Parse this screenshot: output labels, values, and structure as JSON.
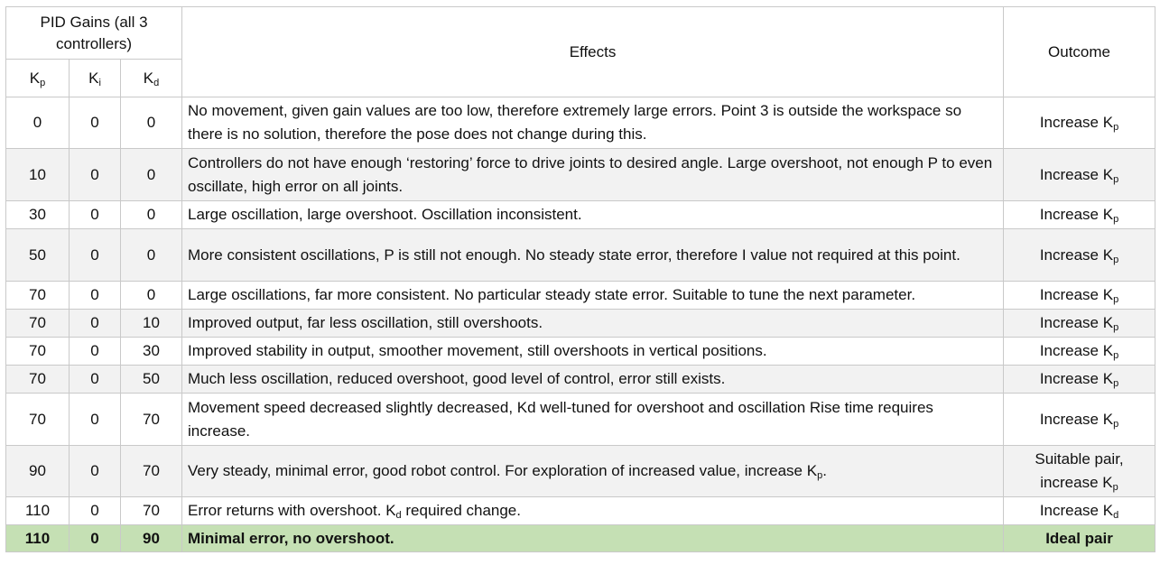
{
  "header": {
    "group_label": "PID Gains (all 3 controllers)",
    "kp": {
      "base": "K",
      "sub": "p"
    },
    "ki": {
      "base": "K",
      "sub": "i"
    },
    "kd": {
      "base": "K",
      "sub": "d"
    },
    "effects": "Effects",
    "outcome": "Outcome"
  },
  "rows": [
    {
      "kp": "0",
      "ki": "0",
      "kd": "0",
      "effects": "No movement, given gain values are too low, therefore extremely large errors. Point 3 is outside the workspace so there is no solution, therefore the pose does not change during this.",
      "outcome_pre": "Increase K",
      "outcome_sub": "p"
    },
    {
      "kp": "10",
      "ki": "0",
      "kd": "0",
      "effects": "Controllers do not have enough ‘restoring’ force to drive joints to desired angle. Large overshoot, not enough P to even oscillate, high error on all joints.",
      "outcome_pre": "Increase K",
      "outcome_sub": "p"
    },
    {
      "kp": "30",
      "ki": "0",
      "kd": "0",
      "effects": "Large oscillation, large overshoot. Oscillation inconsistent.",
      "outcome_pre": "Increase K",
      "outcome_sub": "p"
    },
    {
      "kp": "50",
      "ki": "0",
      "kd": "0",
      "effects": "More consistent oscillations, P is still not enough. No steady state error, therefore I value not required at this point.",
      "outcome_pre": "Increase K",
      "outcome_sub": "p"
    },
    {
      "kp": "70",
      "ki": "0",
      "kd": "0",
      "effects": "Large oscillations, far more consistent. No particular steady state error. Suitable to tune the next parameter.",
      "outcome_pre": "Increase K",
      "outcome_sub": "p"
    },
    {
      "kp": "70",
      "ki": "0",
      "kd": "10",
      "effects": "Improved output, far less oscillation, still overshoots.",
      "outcome_pre": "Increase K",
      "outcome_sub": "p"
    },
    {
      "kp": "70",
      "ki": "0",
      "kd": "30",
      "effects": "Improved stability in output, smoother movement, still overshoots in vertical positions.",
      "outcome_pre": "Increase K",
      "outcome_sub": "p"
    },
    {
      "kp": "70",
      "ki": "0",
      "kd": "50",
      "effects": "Much less oscillation, reduced overshoot, good level of control, error still exists.",
      "outcome_pre": "Increase K",
      "outcome_sub": "p"
    },
    {
      "kp": "70",
      "ki": "0",
      "kd": "70",
      "effects": "Movement speed decreased slightly decreased, Kd well-tuned for overshoot and oscillation Rise time requires increase.",
      "outcome_pre": "Increase K",
      "outcome_sub": "p"
    },
    {
      "kp": "90",
      "ki": "0",
      "kd": "70",
      "effects_pre": "Very steady, minimal error, good robot control. For exploration of increased value, increase K",
      "effects_sub": "p",
      "effects_post": ".",
      "outcome_line1": "Suitable pair,",
      "outcome_pre": "increase K",
      "outcome_sub": "p"
    },
    {
      "kp": "110",
      "ki": "0",
      "kd": "70",
      "effects_pre": "Error returns with overshoot. K",
      "effects_sub": "d",
      "effects_post": " required change.",
      "outcome_pre": "Increase K",
      "outcome_sub": "d"
    },
    {
      "kp": "110",
      "ki": "0",
      "kd": "90",
      "effects": "Minimal error, no overshoot.",
      "outcome_text": "Ideal pair"
    }
  ]
}
